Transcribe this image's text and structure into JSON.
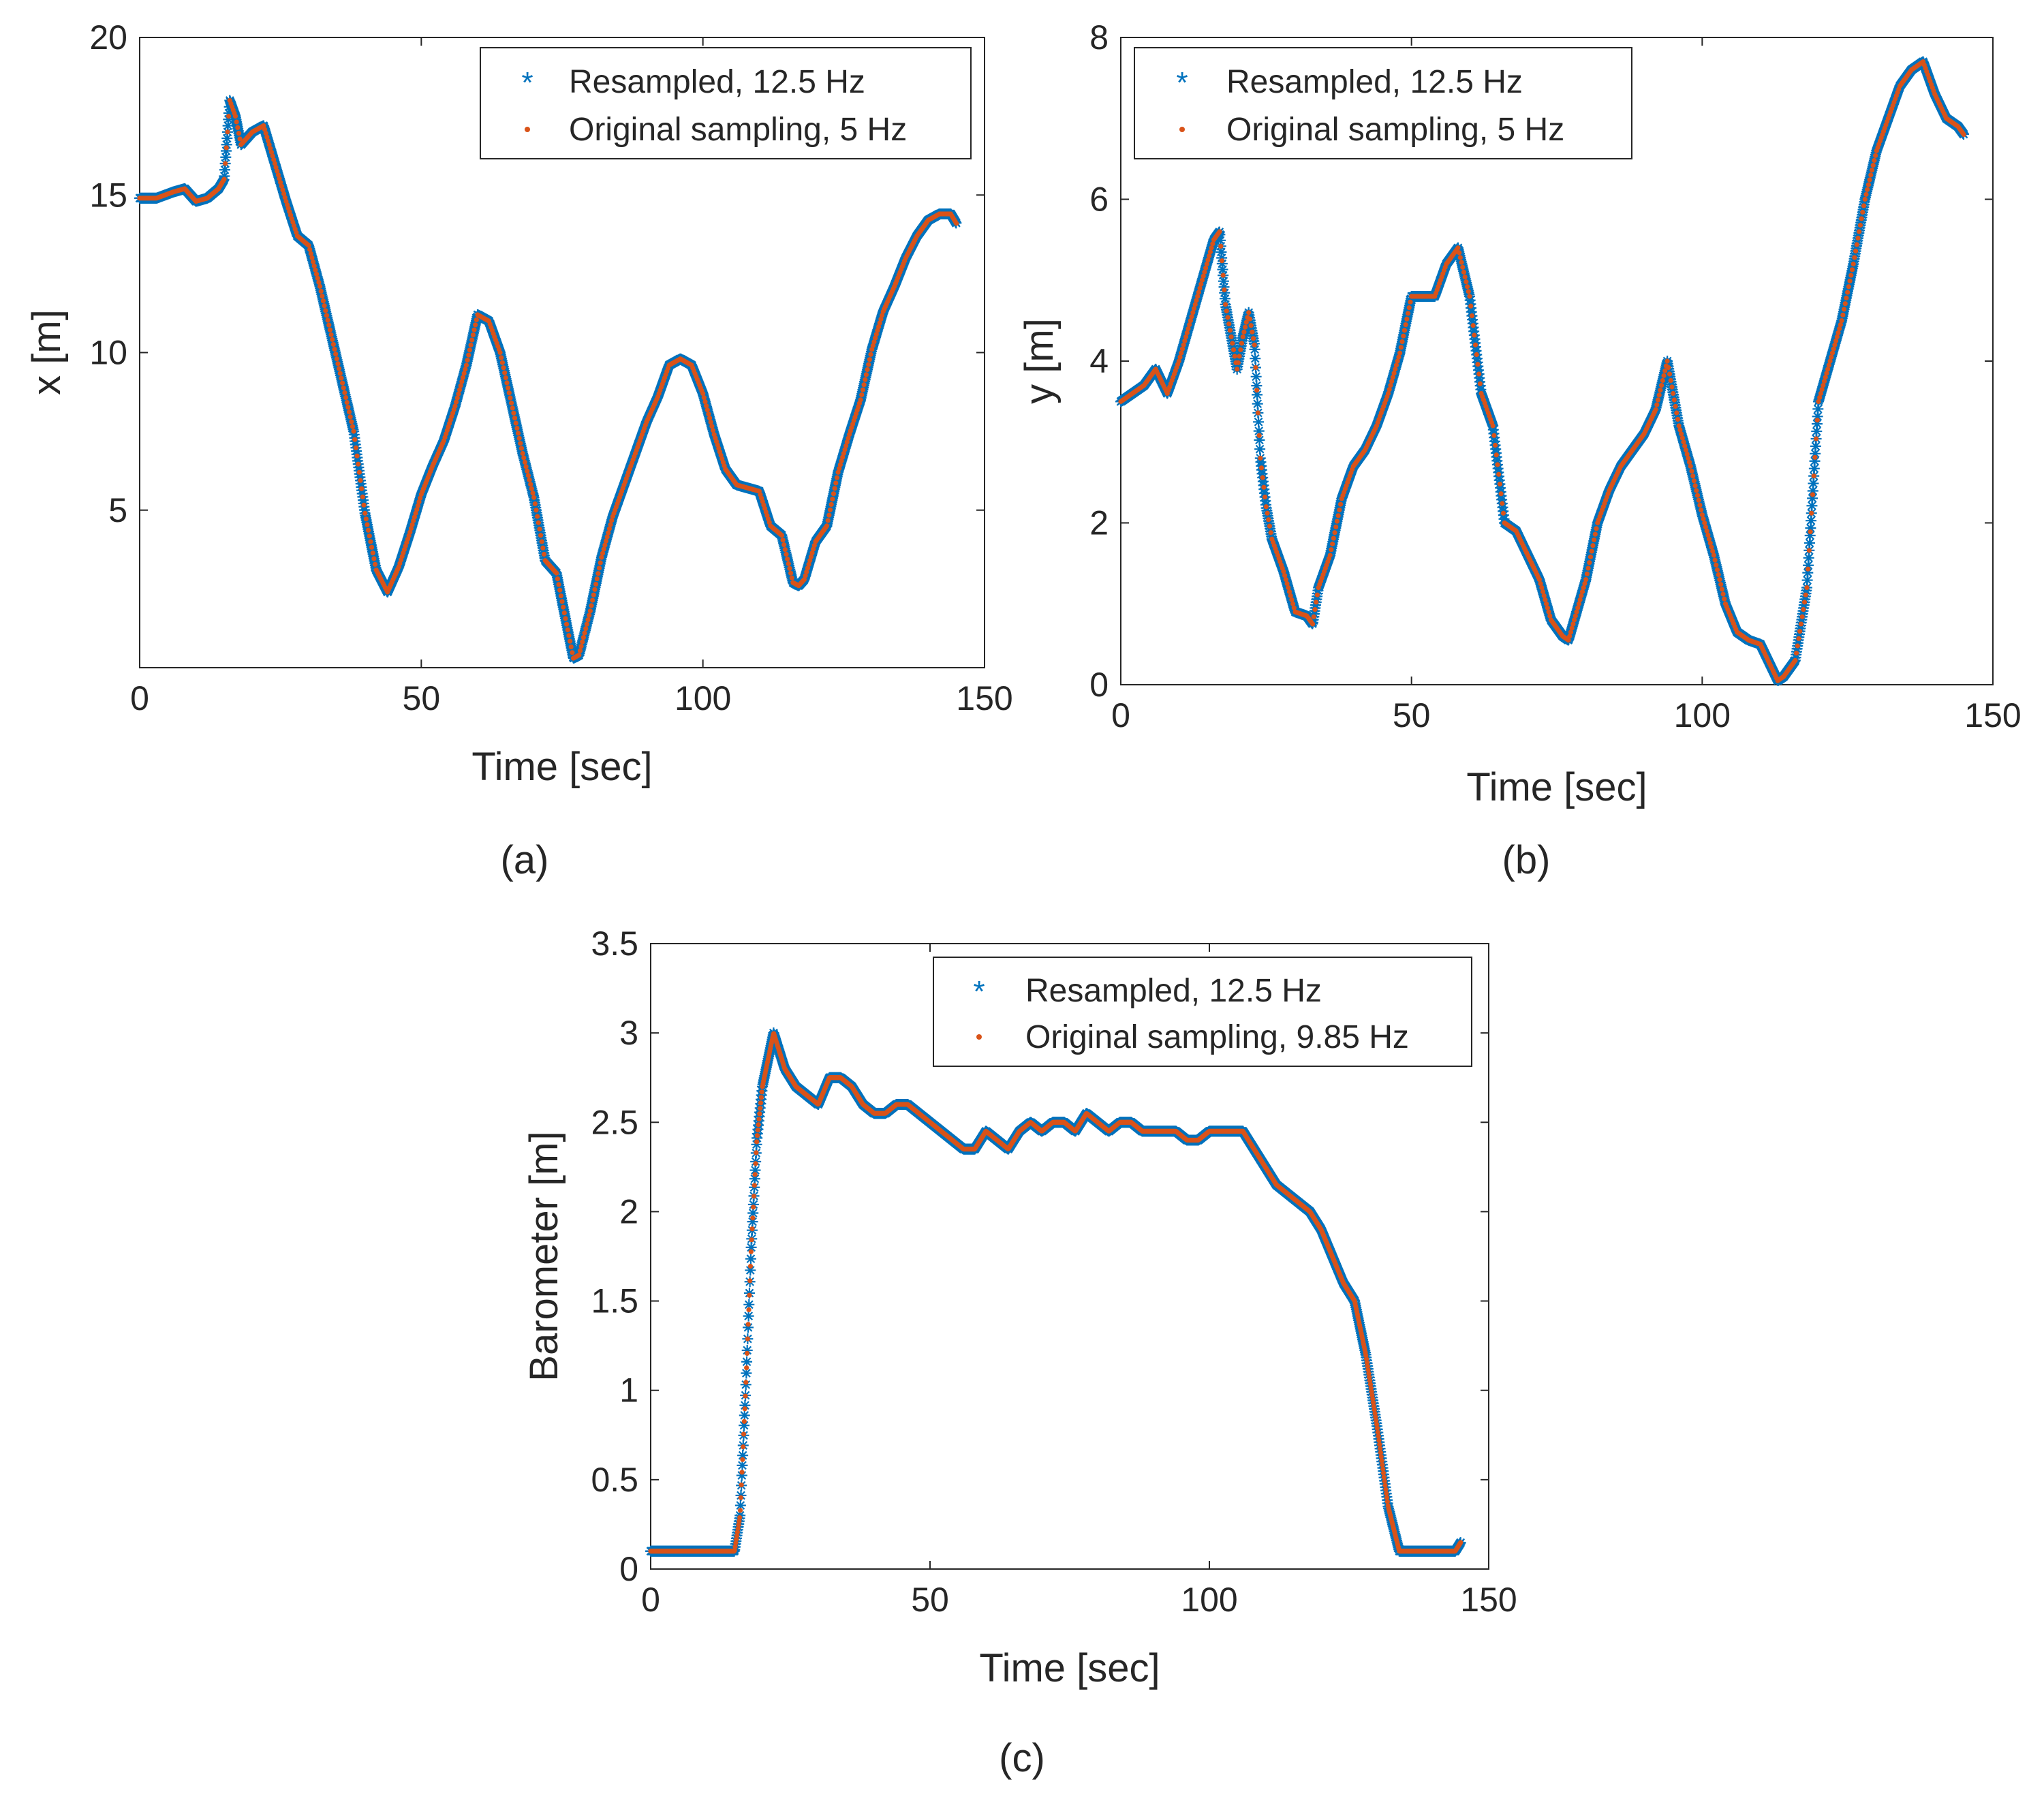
{
  "colors": {
    "resampled": "#0072BD",
    "original": "#D95319",
    "axis": "#262626"
  },
  "chart_data": [
    {
      "id": "a",
      "type": "scatter",
      "panel_label": "(a)",
      "xlabel": "Time [sec]",
      "ylabel": "x [m]",
      "xlim": [
        0,
        150
      ],
      "ylim": [
        0,
        20
      ],
      "xticks": [
        0,
        50,
        100,
        150
      ],
      "xtick_labels": [
        "0",
        "50",
        "100",
        "150"
      ],
      "yticks": [
        5,
        10,
        15,
        20
      ],
      "ytick_labels": [
        "5",
        "10",
        "15",
        "20"
      ],
      "legend": [
        "Resampled, 12.5 Hz",
        "Original sampling, 5 Hz"
      ],
      "legend_position": "top-right",
      "series": [
        {
          "name": "Resampled, 12.5 Hz",
          "marker": "asterisk",
          "rate_hz": 12.5
        },
        {
          "name": "Original sampling, 5 Hz",
          "marker": "dot",
          "rate_hz": 5
        }
      ],
      "x": [
        0,
        3,
        6,
        8,
        10,
        12,
        14,
        15,
        16,
        17,
        18,
        19,
        20,
        22,
        24,
        26,
        28,
        30,
        32,
        35,
        38,
        40,
        42,
        44,
        46,
        48,
        50,
        52,
        54,
        56,
        58,
        60,
        62,
        64,
        66,
        68,
        70,
        72,
        74,
        76,
        77,
        78,
        80,
        82,
        84,
        86,
        88,
        90,
        92,
        94,
        96,
        98,
        100,
        102,
        104,
        106,
        108,
        110,
        112,
        114,
        116,
        117,
        118,
        120,
        122,
        124,
        126,
        128,
        130,
        132,
        134,
        136,
        138,
        140,
        142,
        144,
        145
      ],
      "y": [
        14.9,
        14.9,
        15.1,
        15.2,
        14.8,
        14.9,
        15.2,
        15.5,
        18.0,
        17.5,
        16.6,
        16.8,
        17.0,
        17.2,
        16.0,
        14.8,
        13.7,
        13.4,
        12.1,
        9.8,
        7.5,
        4.9,
        3.1,
        2.4,
        3.2,
        4.3,
        5.5,
        6.4,
        7.2,
        8.3,
        9.6,
        11.2,
        11.0,
        10.0,
        8.4,
        6.8,
        5.4,
        3.4,
        3.0,
        1.2,
        0.3,
        0.4,
        1.8,
        3.5,
        4.8,
        5.8,
        6.8,
        7.8,
        8.6,
        9.6,
        9.8,
        9.6,
        8.7,
        7.4,
        6.3,
        5.8,
        5.7,
        5.6,
        4.5,
        4.2,
        2.7,
        2.6,
        2.8,
        4.0,
        4.5,
        6.2,
        7.4,
        8.5,
        10.1,
        11.3,
        12.1,
        13.0,
        13.7,
        14.2,
        14.4,
        14.4,
        14.1
      ]
    },
    {
      "id": "b",
      "type": "scatter",
      "panel_label": "(b)",
      "xlabel": "Time [sec]",
      "ylabel": "y [m]",
      "xlim": [
        0,
        150
      ],
      "ylim": [
        0,
        8
      ],
      "xticks": [
        0,
        50,
        100,
        150
      ],
      "xtick_labels": [
        "0",
        "50",
        "100",
        "150"
      ],
      "yticks": [
        0,
        2,
        4,
        6,
        8
      ],
      "ytick_labels": [
        "0",
        "2",
        "4",
        "6",
        "8"
      ],
      "legend": [
        "Resampled, 12.5 Hz",
        "Original sampling, 5 Hz"
      ],
      "legend_position": "top-left",
      "series": [
        {
          "name": "Resampled, 12.5 Hz",
          "marker": "asterisk",
          "rate_hz": 12.5
        },
        {
          "name": "Original sampling, 5 Hz",
          "marker": "dot",
          "rate_hz": 5
        }
      ],
      "x": [
        0,
        2,
        4,
        6,
        8,
        10,
        12,
        14,
        16,
        17,
        18,
        19,
        20,
        21,
        22,
        23,
        24,
        25,
        26,
        28,
        30,
        32,
        33,
        34,
        36,
        38,
        40,
        42,
        44,
        46,
        48,
        50,
        52,
        54,
        56,
        58,
        60,
        62,
        64,
        66,
        68,
        70,
        72,
        74,
        76,
        77,
        78,
        80,
        82,
        84,
        86,
        88,
        90,
        92,
        94,
        96,
        98,
        100,
        102,
        104,
        106,
        108,
        110,
        112,
        113,
        114,
        116,
        118,
        120,
        122,
        124,
        126,
        128,
        130,
        132,
        134,
        136,
        138,
        140,
        142,
        144,
        145
      ],
      "y": [
        3.5,
        3.6,
        3.7,
        3.9,
        3.6,
        4.0,
        4.5,
        5.0,
        5.5,
        5.6,
        4.7,
        4.3,
        3.9,
        4.3,
        4.6,
        4.2,
        2.8,
        2.2,
        1.8,
        1.4,
        0.9,
        0.85,
        0.75,
        1.2,
        1.6,
        2.3,
        2.7,
        2.9,
        3.2,
        3.6,
        4.1,
        4.8,
        4.8,
        4.8,
        5.2,
        5.4,
        4.8,
        3.6,
        3.2,
        2.0,
        1.9,
        1.6,
        1.3,
        0.8,
        0.6,
        0.55,
        0.8,
        1.3,
        2.0,
        2.4,
        2.7,
        2.9,
        3.1,
        3.4,
        4.0,
        3.2,
        2.7,
        2.1,
        1.6,
        1.0,
        0.65,
        0.55,
        0.5,
        0.2,
        0.05,
        0.1,
        0.3,
        1.2,
        3.5,
        4.0,
        4.5,
        5.2,
        6.0,
        6.6,
        7.0,
        7.4,
        7.6,
        7.7,
        7.3,
        7.0,
        6.9,
        6.8
      ]
    },
    {
      "id": "c",
      "type": "scatter",
      "panel_label": "(c)",
      "xlabel": "Time [sec]",
      "ylabel": "Barometer [m]",
      "xlim": [
        0,
        150
      ],
      "ylim": [
        0,
        3.5
      ],
      "xticks": [
        0,
        50,
        100,
        150
      ],
      "xtick_labels": [
        "0",
        "50",
        "100",
        "150"
      ],
      "yticks": [
        0,
        0.5,
        1,
        1.5,
        2,
        2.5,
        3,
        3.5
      ],
      "ytick_labels": [
        "0",
        "0.5",
        "1",
        "1.5",
        "2",
        "2.5",
        "3",
        "3.5"
      ],
      "legend": [
        "Resampled, 12.5 Hz",
        "Original sampling, 9.85 Hz"
      ],
      "legend_position": "top-right",
      "series": [
        {
          "name": "Resampled, 12.5 Hz",
          "marker": "asterisk",
          "rate_hz": 12.5
        },
        {
          "name": "Original sampling, 9.85 Hz",
          "marker": "dot",
          "rate_hz": 9.85
        }
      ],
      "x": [
        0,
        5,
        10,
        15,
        16,
        17,
        18,
        19,
        20,
        21,
        22,
        24,
        26,
        28,
        30,
        32,
        34,
        36,
        38,
        40,
        42,
        44,
        46,
        48,
        50,
        52,
        54,
        56,
        58,
        60,
        62,
        64,
        66,
        68,
        70,
        72,
        74,
        76,
        78,
        80,
        82,
        84,
        86,
        88,
        90,
        92,
        94,
        96,
        98,
        100,
        102,
        104,
        106,
        108,
        110,
        112,
        114,
        116,
        118,
        120,
        122,
        124,
        126,
        128,
        130,
        132,
        134,
        135,
        136,
        138,
        140,
        142,
        144,
        145
      ],
      "y": [
        0.1,
        0.1,
        0.1,
        0.1,
        0.3,
        1.0,
        1.8,
        2.4,
        2.7,
        2.85,
        3.0,
        2.8,
        2.7,
        2.65,
        2.6,
        2.75,
        2.75,
        2.7,
        2.6,
        2.55,
        2.55,
        2.6,
        2.6,
        2.55,
        2.5,
        2.45,
        2.4,
        2.35,
        2.35,
        2.45,
        2.4,
        2.35,
        2.45,
        2.5,
        2.45,
        2.5,
        2.5,
        2.45,
        2.55,
        2.5,
        2.45,
        2.5,
        2.5,
        2.45,
        2.45,
        2.45,
        2.45,
        2.4,
        2.4,
        2.45,
        2.45,
        2.45,
        2.45,
        2.35,
        2.25,
        2.15,
        2.1,
        2.05,
        2.0,
        1.9,
        1.75,
        1.6,
        1.5,
        1.2,
        0.8,
        0.35,
        0.1,
        0.1,
        0.1,
        0.1,
        0.1,
        0.1,
        0.1,
        0.15
      ]
    }
  ]
}
